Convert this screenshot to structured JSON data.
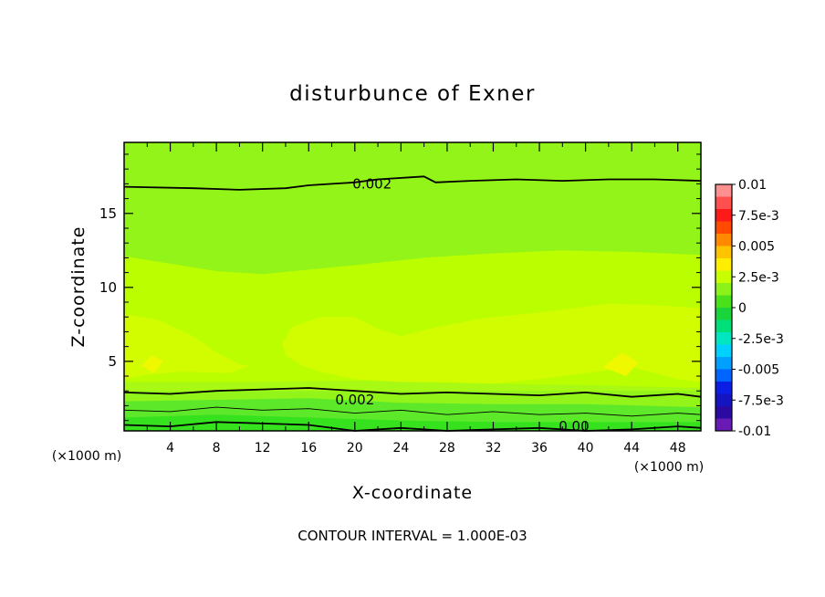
{
  "chart_data": {
    "type": "heatmap",
    "title": "disturbunce of Exner",
    "xlabel": "X-coordinate",
    "ylabel": "Z-coordinate",
    "x_unit_left": "(×1000 m)",
    "x_unit_right": "(×1000 m)",
    "xlim": [
      0,
      50
    ],
    "ylim": [
      0.3,
      19.8
    ],
    "xticks": [
      "4",
      "8",
      "12",
      "16",
      "20",
      "24",
      "28",
      "32",
      "36",
      "40",
      "44",
      "48"
    ],
    "yticks": [
      "5",
      "10",
      "15"
    ],
    "footer": "CONTOUR INTERVAL = 1.000E-03",
    "colorbar": {
      "labels": [
        "0.01",
        "7.5e-3",
        "0.005",
        "2.5e-3",
        "0",
        "-2.5e-3",
        "-0.005",
        "-7.5e-3",
        "-0.01"
      ],
      "range": [
        -0.01,
        0.01
      ],
      "colors": [
        "#ff9090",
        "#ff5050",
        "#ff1a1a",
        "#ff4a00",
        "#ff8a00",
        "#ffc400",
        "#ffee00",
        "#c8ff00",
        "#8cf21a",
        "#4ae01a",
        "#1ad43c",
        "#00e07a",
        "#00e6c0",
        "#00d2ff",
        "#00a0ff",
        "#0064ff",
        "#0a1ee6",
        "#1414c0",
        "#2a0aa0",
        "#6a1ab4"
      ]
    },
    "contour_labels": [
      {
        "text": "0.002",
        "x": 21.5,
        "z": 17.0
      },
      {
        "text": "0.002",
        "x": 20.0,
        "z": 2.4
      },
      {
        "text": "0.00",
        "x": 39.0,
        "z": 0.6
      }
    ],
    "contour_lines": [
      {
        "level": 0.002,
        "points": [
          [
            0,
            16.8
          ],
          [
            6,
            16.7
          ],
          [
            10,
            16.6
          ],
          [
            14,
            16.7
          ],
          [
            16,
            16.9
          ],
          [
            18,
            17.0
          ],
          [
            20,
            17.1
          ],
          [
            22,
            17.3
          ],
          [
            26,
            17.5
          ],
          [
            27,
            17.1
          ],
          [
            30,
            17.2
          ],
          [
            34,
            17.3
          ],
          [
            38,
            17.2
          ],
          [
            42,
            17.3
          ],
          [
            46,
            17.3
          ],
          [
            50,
            17.2
          ]
        ]
      },
      {
        "level": 0.002,
        "points": [
          [
            0,
            2.9
          ],
          [
            4,
            2.8
          ],
          [
            8,
            3.0
          ],
          [
            12,
            3.1
          ],
          [
            16,
            3.2
          ],
          [
            20,
            3.0
          ],
          [
            24,
            2.8
          ],
          [
            28,
            2.9
          ],
          [
            32,
            2.8
          ],
          [
            36,
            2.7
          ],
          [
            40,
            2.9
          ],
          [
            44,
            2.6
          ],
          [
            48,
            2.8
          ],
          [
            50,
            2.6
          ]
        ]
      },
      {
        "level": 0.001,
        "points": [
          [
            0,
            1.7
          ],
          [
            4,
            1.6
          ],
          [
            8,
            1.9
          ],
          [
            12,
            1.7
          ],
          [
            16,
            1.8
          ],
          [
            20,
            1.5
          ],
          [
            24,
            1.7
          ],
          [
            28,
            1.4
          ],
          [
            32,
            1.6
          ],
          [
            36,
            1.4
          ],
          [
            40,
            1.5
          ],
          [
            44,
            1.3
          ],
          [
            48,
            1.5
          ],
          [
            50,
            1.4
          ]
        ]
      },
      {
        "level": 0.0,
        "points": [
          [
            0,
            0.7
          ],
          [
            4,
            0.6
          ],
          [
            8,
            0.9
          ],
          [
            12,
            0.8
          ],
          [
            16,
            0.7
          ],
          [
            20,
            0.3
          ],
          [
            24,
            0.5
          ],
          [
            28,
            0.3
          ],
          [
            32,
            0.4
          ],
          [
            36,
            0.5
          ],
          [
            40,
            0.3
          ],
          [
            44,
            0.4
          ],
          [
            48,
            0.6
          ],
          [
            50,
            0.5
          ]
        ]
      }
    ],
    "regions": [
      {
        "value": 0.0013,
        "color": "#a8fa14",
        "points": [
          [
            0,
            10.6
          ],
          [
            6,
            10.3
          ],
          [
            10,
            10.0
          ],
          [
            14,
            9.8
          ],
          [
            18,
            10.0
          ],
          [
            24,
            10.4
          ],
          [
            30,
            10.9
          ],
          [
            36,
            11.3
          ],
          [
            42,
            11.4
          ],
          [
            46,
            11.3
          ],
          [
            50,
            11.1
          ],
          [
            50,
            3.0
          ],
          [
            0,
            3.0
          ]
        ]
      },
      {
        "value": 0.0016,
        "color": "#bbfe00",
        "points": [
          [
            0,
            12.1
          ],
          [
            4,
            11.6
          ],
          [
            8,
            11.1
          ],
          [
            12,
            10.9
          ],
          [
            16,
            11.2
          ],
          [
            20,
            11.5
          ],
          [
            26,
            12.0
          ],
          [
            32,
            12.3
          ],
          [
            38,
            12.5
          ],
          [
            44,
            12.4
          ],
          [
            50,
            12.2
          ],
          [
            50,
            3.2
          ],
          [
            40,
            3.4
          ],
          [
            30,
            3.5
          ],
          [
            20,
            3.7
          ],
          [
            10,
            3.6
          ],
          [
            0,
            3.6
          ]
        ]
      },
      {
        "value": 0.0024,
        "color": "#d2fc00",
        "points": [
          [
            0,
            8.2
          ],
          [
            3,
            7.8
          ],
          [
            6,
            6.7
          ],
          [
            8,
            5.6
          ],
          [
            10,
            4.8
          ],
          [
            11,
            4.7
          ],
          [
            9,
            4.2
          ],
          [
            5,
            4.3
          ],
          [
            2,
            4.1
          ],
          [
            0,
            3.8
          ]
        ]
      },
      {
        "value": 0.0024,
        "color": "#d2fc00",
        "points": [
          [
            14,
            5.4
          ],
          [
            13.7,
            6.2
          ],
          [
            14.5,
            7.3
          ],
          [
            17,
            8.0
          ],
          [
            20,
            8.0
          ],
          [
            22,
            7.2
          ],
          [
            24,
            6.7
          ],
          [
            27,
            7.3
          ],
          [
            31,
            7.9
          ],
          [
            36,
            8.3
          ],
          [
            42,
            8.9
          ],
          [
            46,
            8.8
          ],
          [
            50,
            8.6
          ],
          [
            50,
            3.6
          ],
          [
            48,
            3.8
          ],
          [
            46,
            4.2
          ],
          [
            44,
            4.6
          ],
          [
            40,
            4.2
          ],
          [
            36,
            3.8
          ],
          [
            32,
            3.5
          ],
          [
            28,
            3.6
          ],
          [
            24,
            3.6
          ],
          [
            20,
            3.8
          ],
          [
            17,
            4.3
          ],
          [
            15.5,
            4.7
          ]
        ]
      },
      {
        "value": 0.003,
        "color": "#f0f800",
        "points": [
          [
            1.5,
            4.7
          ],
          [
            2.6,
            4.2
          ],
          [
            3.4,
            5.0
          ],
          [
            2.4,
            5.4
          ]
        ]
      },
      {
        "value": 0.003,
        "color": "#f0f800",
        "points": [
          [
            41.5,
            4.6
          ],
          [
            43.5,
            4.0
          ],
          [
            44.6,
            4.9
          ],
          [
            43.2,
            5.6
          ]
        ]
      },
      {
        "value": 0.0005,
        "color": "#5ee82a",
        "points": [
          [
            0,
            2.3
          ],
          [
            8,
            2.4
          ],
          [
            16,
            2.5
          ],
          [
            24,
            2.2
          ],
          [
            32,
            2.1
          ],
          [
            40,
            2.1
          ],
          [
            50,
            1.9
          ],
          [
            50,
            0.3
          ],
          [
            0,
            0.3
          ]
        ]
      },
      {
        "value": -0.0003,
        "color": "#36e21e",
        "points": [
          [
            0,
            1.2
          ],
          [
            8,
            1.4
          ],
          [
            16,
            1.2
          ],
          [
            24,
            1.0
          ],
          [
            32,
            0.9
          ],
          [
            40,
            0.9
          ],
          [
            50,
            0.9
          ],
          [
            50,
            0.3
          ],
          [
            0,
            0.3
          ]
        ]
      }
    ]
  }
}
